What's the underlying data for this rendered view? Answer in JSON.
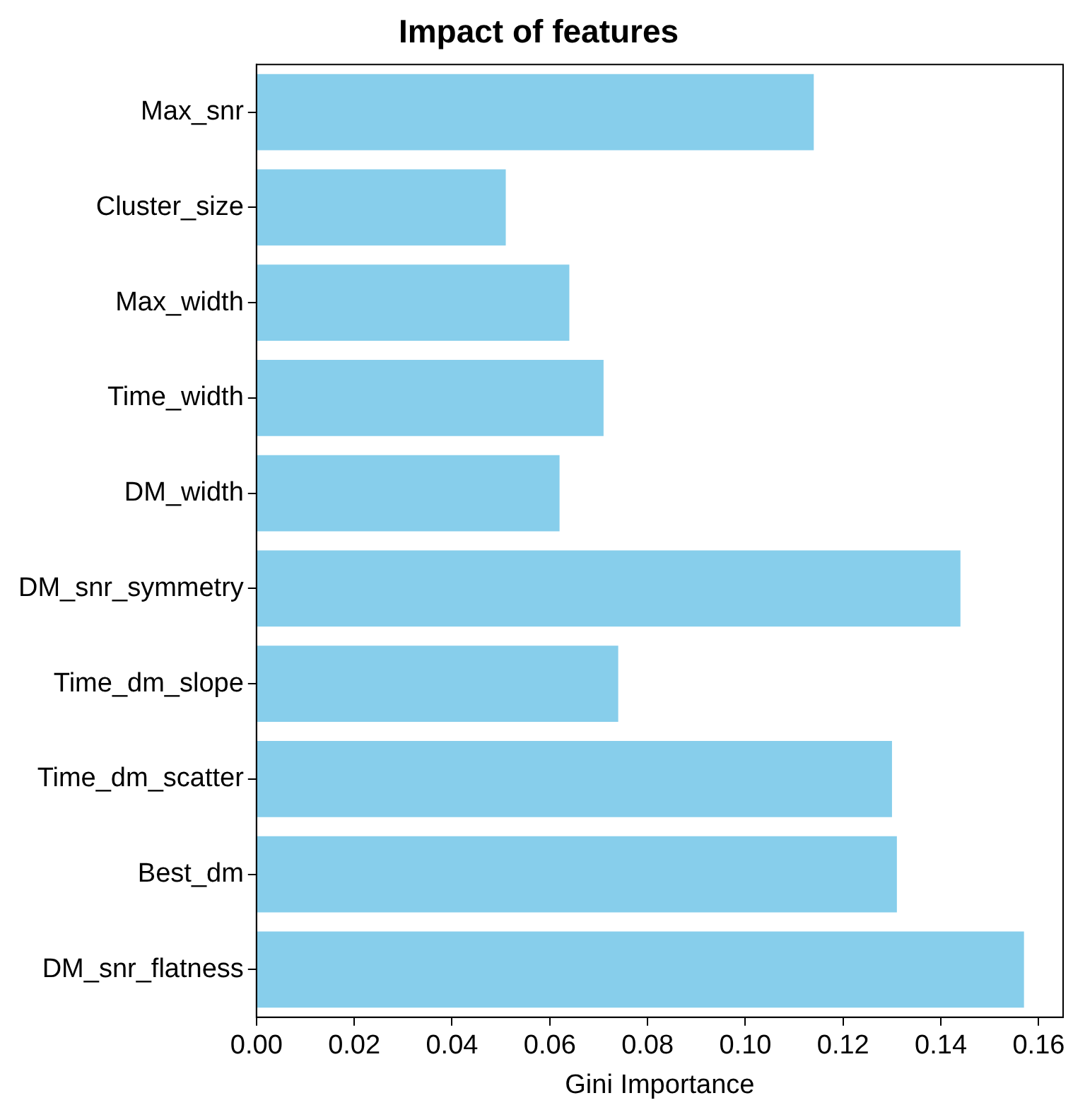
{
  "chart_data": {
    "type": "bar",
    "orientation": "horizontal",
    "title": "Impact of features",
    "xlabel": "Gini Importance",
    "categories": [
      "Max_snr",
      "Cluster_size",
      "Max_width",
      "Time_width",
      "DM_width",
      "DM_snr_symmetry",
      "Time_dm_slope",
      "Time_dm_scatter",
      "Best_dm",
      "DM_snr_flatness"
    ],
    "values": [
      0.114,
      0.051,
      0.064,
      0.071,
      0.062,
      0.144,
      0.074,
      0.13,
      0.131,
      0.157
    ],
    "color": "#87ceeb",
    "xlim": [
      0,
      0.165
    ],
    "xticks": [
      {
        "value": 0,
        "label": "0.00"
      },
      {
        "value": 0.02,
        "label": "0.02"
      },
      {
        "value": 0.04,
        "label": "0.04"
      },
      {
        "value": 0.06,
        "label": "0.06"
      },
      {
        "value": 0.08,
        "label": "0.08"
      },
      {
        "value": 0.1,
        "label": "0.10"
      },
      {
        "value": 0.12,
        "label": "0.12"
      },
      {
        "value": 0.14,
        "label": "0.14"
      },
      {
        "value": 0.16,
        "label": "0.16"
      }
    ],
    "grid": false,
    "legend": false
  }
}
